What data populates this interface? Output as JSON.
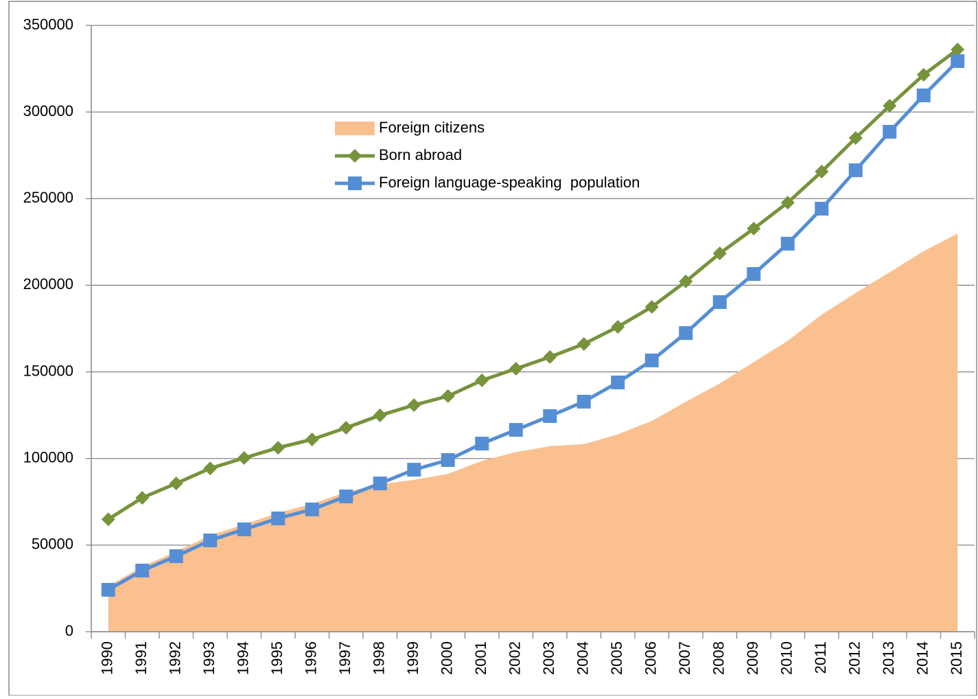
{
  "chart_data": {
    "type": "line",
    "categories": [
      "1990",
      "1991",
      "1992",
      "1993",
      "1994",
      "1995",
      "1996",
      "1997",
      "1998",
      "1999",
      "2000",
      "2001",
      "2002",
      "2003",
      "2004",
      "2005",
      "2006",
      "2007",
      "2008",
      "2009",
      "2010",
      "2011",
      "2012",
      "2013",
      "2014",
      "2015"
    ],
    "series": [
      {
        "name": "Foreign citizens",
        "type": "area",
        "color": "#fac090",
        "values": [
          26300,
          37600,
          46300,
          55600,
          62000,
          68600,
          73800,
          80600,
          85100,
          87700,
          91100,
          98600,
          103700,
          107100,
          108300,
          113900,
          121700,
          132700,
          143300,
          155700,
          167900,
          183100,
          195500,
          207500,
          219700,
          229800
        ]
      },
      {
        "name": "Born abroad",
        "type": "line",
        "marker": "diamond",
        "color": "#77933c",
        "values": [
          64900,
          77300,
          85600,
          94300,
          100300,
          106200,
          111000,
          117700,
          124900,
          130800,
          136000,
          145100,
          151800,
          158600,
          166100,
          176000,
          187500,
          202200,
          218400,
          232700,
          247700,
          265600,
          285000,
          303600,
          321500,
          336100
        ]
      },
      {
        "name": "Foreign language-speaking  population",
        "type": "line",
        "marker": "square",
        "color": "#558ed5",
        "values": [
          24200,
          35300,
          43600,
          52700,
          59100,
          65400,
          70600,
          78100,
          85600,
          93500,
          99100,
          108600,
          116500,
          124500,
          132800,
          143900,
          156600,
          172400,
          190300,
          206500,
          224000,
          244200,
          266400,
          288600,
          309600,
          329400
        ]
      }
    ],
    "ylim": [
      0,
      350000
    ],
    "yticks": [
      0,
      50000,
      100000,
      150000,
      200000,
      250000,
      300000,
      350000
    ],
    "grid": true
  }
}
